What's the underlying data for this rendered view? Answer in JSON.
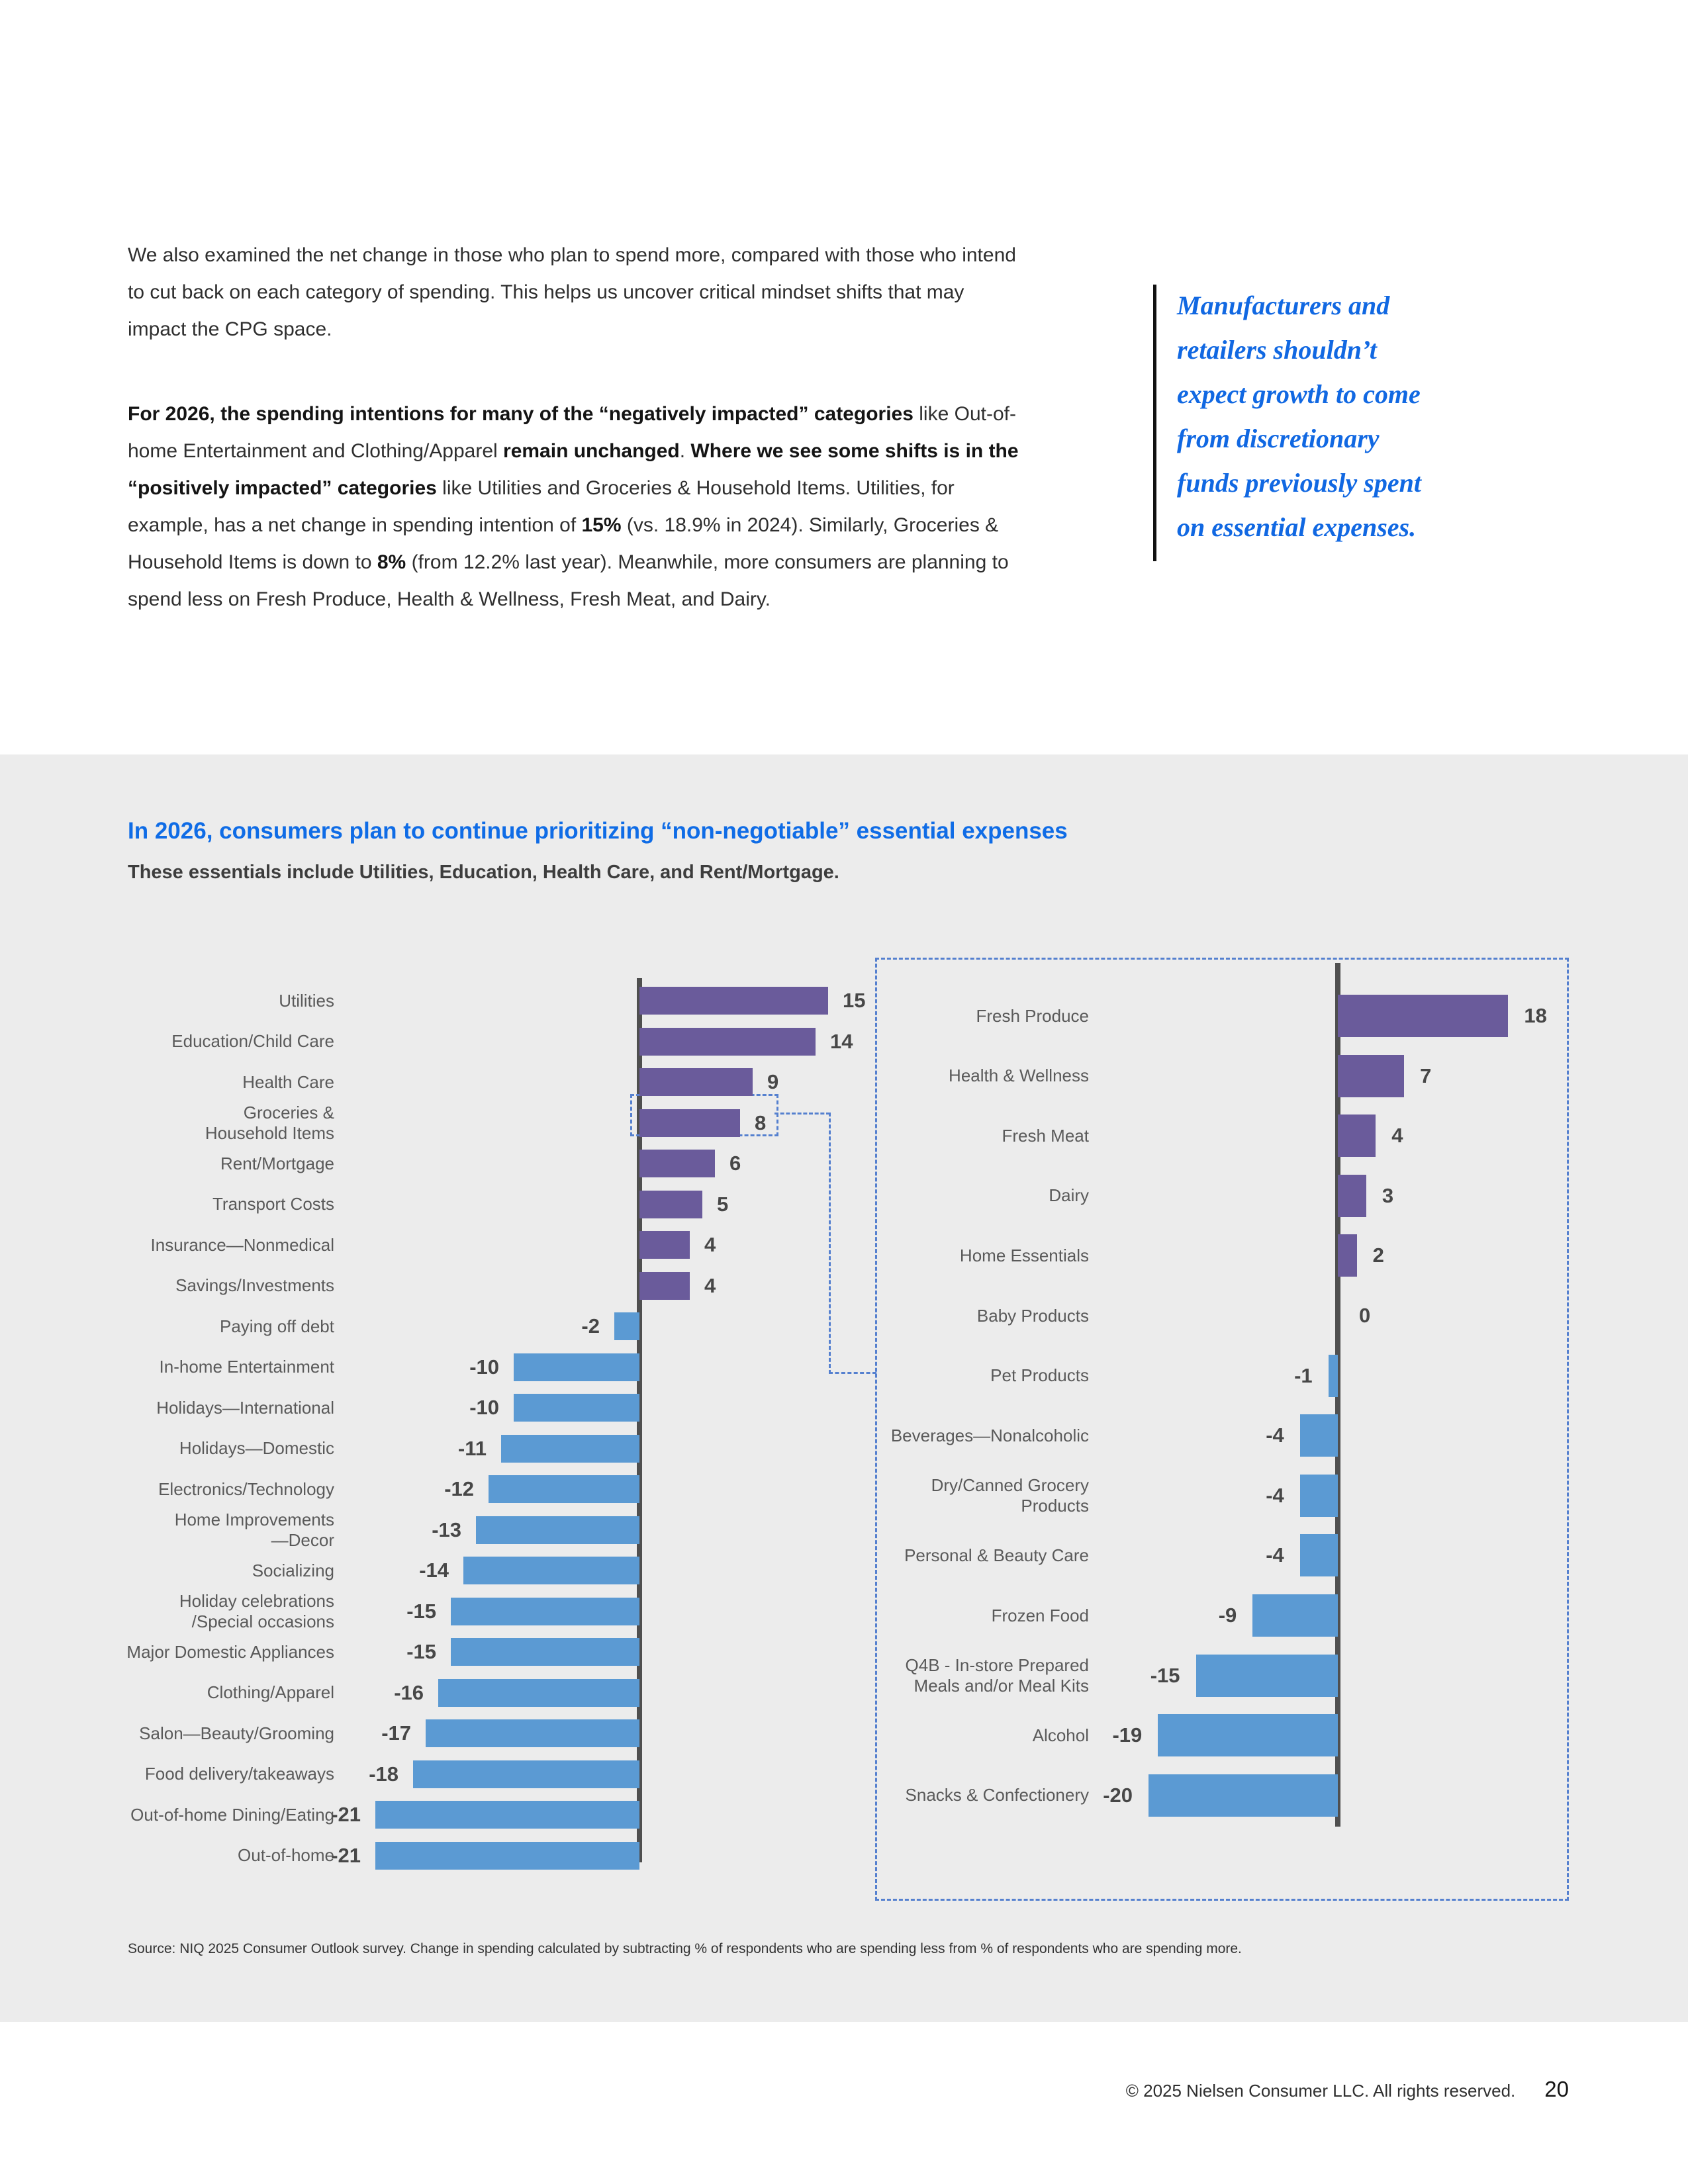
{
  "intro": {
    "paragraphs": [
      {
        "runs": [
          {
            "t": "We also examined the net change in those who plan to spend more, compared with those who intend to cut back on each category of spending. This helps us uncover critical mindset shifts that may impact the CPG space.",
            "b": false
          }
        ]
      },
      {
        "runs": [
          {
            "t": "For 2026, the spending intentions for many of the “negatively impacted” categories",
            "b": true
          },
          {
            "t": " like Out-of-home Entertainment and Clothing/Apparel ",
            "b": false
          },
          {
            "t": "remain unchanged",
            "b": true
          },
          {
            "t": ". ",
            "b": false
          },
          {
            "t": "Where we see some shifts is in the “positively impacted” categories",
            "b": true
          },
          {
            "t": " like Utilities and Groceries & Household Items. Utilities, for example, has a net change in spending intention of ",
            "b": false
          },
          {
            "t": "15%",
            "b": true
          },
          {
            "t": " (vs. 18.9% in 2024). Similarly, Groceries & Household Items is down to ",
            "b": false
          },
          {
            "t": "8%",
            "b": true
          },
          {
            "t": " (from 12.2% last year). Meanwhile, more consumers are planning to spend less on Fresh Produce, Health & Wellness, Fresh Meat, and Dairy.",
            "b": false
          }
        ]
      }
    ]
  },
  "quote": {
    "lines": [
      "Manufacturers and",
      "retailers shouldn’t",
      "expect growth to come",
      "from discretionary",
      "funds previously spent",
      "on essential expenses."
    ]
  },
  "section": {
    "title": "In 2026, consumers plan to continue prioritizing “non-negotiable” essential expenses",
    "subtitle": "These essentials include Utilities, Education, Health Care, and Rent/Mortgage."
  },
  "charts": {
    "left": {
      "rows": [
        {
          "label": [
            "Utilities"
          ],
          "value": 15
        },
        {
          "label": [
            "Education/Child Care"
          ],
          "value": 14
        },
        {
          "label": [
            "Health Care"
          ],
          "value": 9
        },
        {
          "label": [
            "Groceries &",
            "Household Items"
          ],
          "value": 8,
          "highlight": true
        },
        {
          "label": [
            "Rent/Mortgage"
          ],
          "value": 6
        },
        {
          "label": [
            "Transport Costs"
          ],
          "value": 5
        },
        {
          "label": [
            "Insurance—Nonmedical"
          ],
          "value": 4
        },
        {
          "label": [
            "Savings/Investments"
          ],
          "value": 4
        },
        {
          "label": [
            "Paying off debt"
          ],
          "value": -2
        },
        {
          "label": [
            "In-home Entertainment"
          ],
          "value": -10
        },
        {
          "label": [
            "Holidays—International"
          ],
          "value": -10
        },
        {
          "label": [
            "Holidays—Domestic"
          ],
          "value": -11
        },
        {
          "label": [
            "Electronics/Technology"
          ],
          "value": -12
        },
        {
          "label": [
            "Home Improvements",
            "—Decor"
          ],
          "value": -13
        },
        {
          "label": [
            "Socializing"
          ],
          "value": -14
        },
        {
          "label": [
            "Holiday celebrations",
            "/Special occasions"
          ],
          "value": -15
        },
        {
          "label": [
            "Major Domestic Appliances"
          ],
          "value": -15
        },
        {
          "label": [
            "Clothing/Apparel"
          ],
          "value": -16
        },
        {
          "label": [
            "Salon—Beauty/Grooming"
          ],
          "value": -17
        },
        {
          "label": [
            "Food delivery/takeaways"
          ],
          "value": -18
        },
        {
          "label": [
            "Out-of-home Dining/Eating"
          ],
          "value": -21
        },
        {
          "label": [
            "Out-of-home"
          ],
          "value": -21
        }
      ]
    },
    "right": {
      "rows": [
        {
          "label": [
            "Fresh Produce"
          ],
          "value": 18
        },
        {
          "label": [
            "Health & Wellness"
          ],
          "value": 7
        },
        {
          "label": [
            "Fresh Meat"
          ],
          "value": 4
        },
        {
          "label": [
            "Dairy"
          ],
          "value": 3
        },
        {
          "label": [
            "Home Essentials"
          ],
          "value": 2
        },
        {
          "label": [
            "Baby Products"
          ],
          "value": 0
        },
        {
          "label": [
            "Pet Products"
          ],
          "value": -1
        },
        {
          "label": [
            "Beverages—Nonalcoholic"
          ],
          "value": -4
        },
        {
          "label": [
            "Dry/Canned Grocery",
            "Products"
          ],
          "value": -4
        },
        {
          "label": [
            "Personal & Beauty Care"
          ],
          "value": -4
        },
        {
          "label": [
            "Frozen Food"
          ],
          "value": -9
        },
        {
          "label": [
            "Q4B - In-store Prepared",
            "Meals and/or Meal Kits"
          ],
          "value": -15
        },
        {
          "label": [
            "Alcohol"
          ],
          "value": -19
        },
        {
          "label": [
            "Snacks & Confectionery"
          ],
          "value": -20
        }
      ]
    }
  },
  "chart_data": [
    {
      "type": "bar",
      "orientation": "horizontal",
      "categories": [
        "Utilities",
        "Education/Child Care",
        "Health Care",
        "Groceries & Household Items",
        "Rent/Mortgage",
        "Transport Costs",
        "Insurance—Nonmedical",
        "Savings/Investments",
        "Paying off debt",
        "In-home Entertainment",
        "Holidays—International",
        "Holidays—Domestic",
        "Electronics/Technology",
        "Home Improvements—Decor",
        "Socializing",
        "Holiday celebrations/Special occasions",
        "Major Domestic Appliances",
        "Clothing/Apparel",
        "Salon—Beauty/Grooming",
        "Food delivery/takeaways",
        "Out-of-home Dining/Eating",
        "Out-of-home"
      ],
      "values": [
        15,
        14,
        9,
        8,
        6,
        5,
        4,
        4,
        -2,
        -10,
        -10,
        -11,
        -12,
        -13,
        -14,
        -15,
        -15,
        -16,
        -17,
        -18,
        -21,
        -21
      ],
      "xlim": [
        -21,
        15
      ],
      "positive_color": "#6a5b9b",
      "negative_color": "#5b9ad3",
      "grid": false,
      "legend": false
    },
    {
      "type": "bar",
      "orientation": "horizontal",
      "categories": [
        "Fresh Produce",
        "Health & Wellness",
        "Fresh Meat",
        "Dairy",
        "Home Essentials",
        "Baby Products",
        "Pet Products",
        "Beverages—Nonalcoholic",
        "Dry/Canned Grocery Products",
        "Personal & Beauty Care",
        "Frozen Food",
        "Q4B - In-store Prepared Meals and/or Meal Kits",
        "Alcohol",
        "Snacks & Confectionery"
      ],
      "values": [
        18,
        7,
        4,
        3,
        2,
        0,
        -1,
        -4,
        -4,
        -4,
        -9,
        -15,
        -19,
        -20
      ],
      "xlim": [
        -20,
        18
      ],
      "positive_color": "#6a5b9b",
      "negative_color": "#5b9ad3",
      "grid": false,
      "legend": false
    }
  ],
  "source": "Source: NIQ 2025 Consumer Outlook survey. Change in spending calculated by subtracting % of respondents who are spending less from % of respondents who are spending more.",
  "footer": {
    "copyright": "© 2025 Nielsen Consumer LLC. All rights reserved.",
    "page": "20"
  },
  "colors": {
    "positive_bar": "#6a5b9b",
    "negative_bar": "#5b9ad3",
    "axis": "#4f4f4f",
    "dashed": "#5580cf",
    "accent_blue": "#0f6ce6",
    "panel_background": "#ececec"
  }
}
